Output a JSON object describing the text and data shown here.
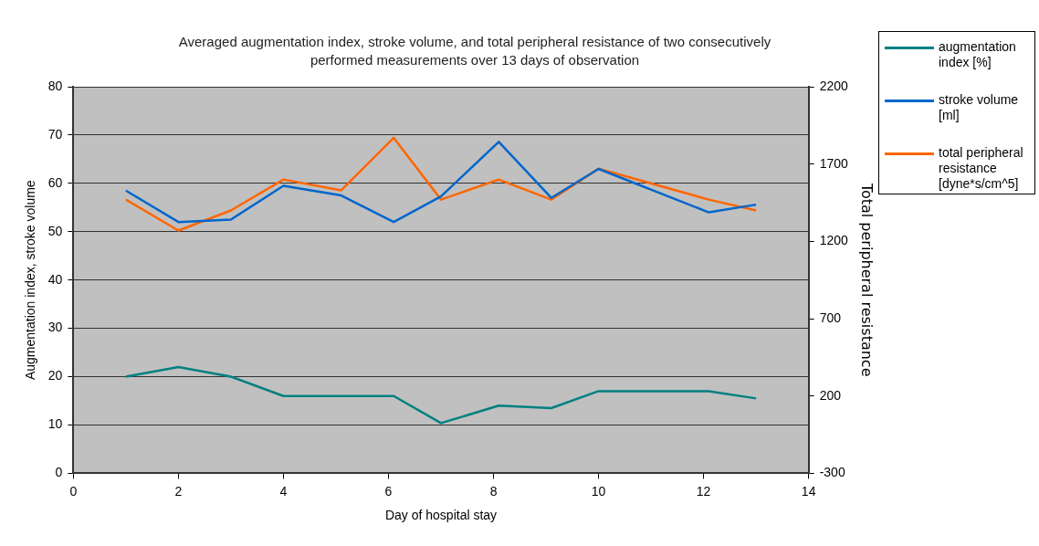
{
  "chart_data": {
    "type": "line",
    "title": "Averaged augmentation index, stroke volume, and total peripheral resistance of two consecutively performed measurements over 13 days of observation",
    "xlabel": "Day of hospital stay",
    "ylabel": "Augmentation index, stroke volume",
    "y2label": "Total peripheral resistance",
    "x": [
      1,
      2,
      3,
      4,
      5.1,
      6.1,
      7,
      8.1,
      9.1,
      10,
      12.1,
      13
    ],
    "series": [
      {
        "name": "augmentation index [%]",
        "color": "#008080",
        "values": [
          20,
          22,
          20,
          16,
          16,
          16,
          10.4,
          14,
          13.5,
          17,
          17,
          15.5
        ]
      },
      {
        "name": "stroke volume [ml]",
        "color": "#0066cc",
        "values": [
          58.5,
          52,
          52.5,
          59.5,
          57.5,
          52,
          57.3,
          68.6,
          57,
          63,
          54,
          55.6
        ]
      },
      {
        "name": "total peripheral resistance [dyne*s/cm^5]",
        "color": "#ff6600",
        "axis": "y2",
        "values": [
          1470,
          1270,
          1400,
          1600,
          1530,
          1870,
          1470,
          1600,
          1470,
          1670,
          1470,
          1400
        ]
      }
    ],
    "xlim": [
      0,
      14
    ],
    "xticks": [
      0,
      2,
      4,
      6,
      8,
      10,
      12,
      14
    ],
    "ylim": [
      0,
      80
    ],
    "yticks": [
      0,
      10,
      20,
      30,
      40,
      50,
      60,
      70,
      80
    ],
    "y2lim": [
      -300,
      2200
    ],
    "y2ticks": [
      -300,
      200,
      700,
      1200,
      1700,
      2200
    ],
    "grid": "y",
    "legend": "top right",
    "marker": "none",
    "line_style": "solid"
  }
}
